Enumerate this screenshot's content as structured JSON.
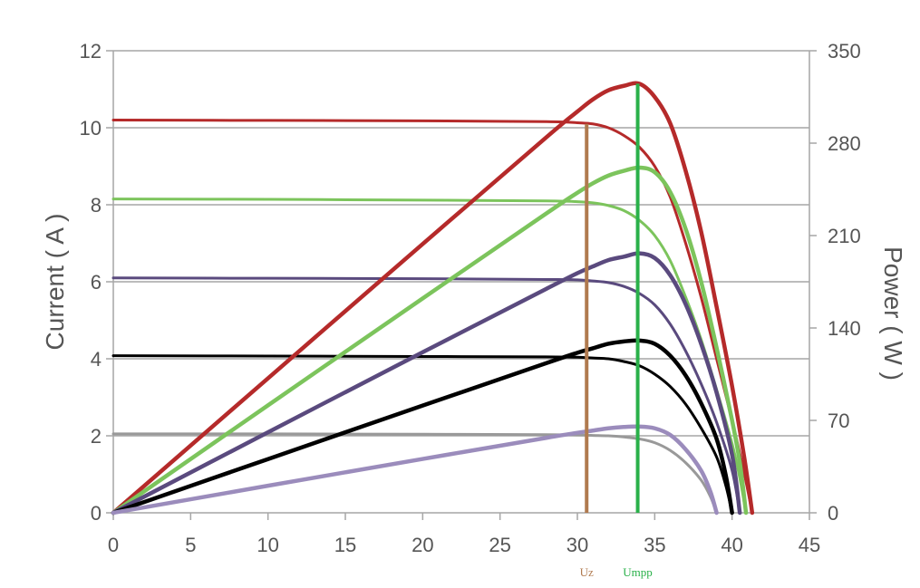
{
  "chart_data": {
    "type": "line",
    "title": "",
    "xlabel": "",
    "ylabel_left": "Current ( A )",
    "ylabel_right": "Power ( W )",
    "xlim": [
      0,
      45
    ],
    "ylim_left": [
      0,
      12
    ],
    "ylim_right": [
      0,
      350
    ],
    "x_ticks": [
      "0",
      "5",
      "10",
      "15",
      "20",
      "25",
      "30",
      "35",
      "40",
      "45"
    ],
    "y_left_ticks": [
      "0",
      "2",
      "4",
      "6",
      "8",
      "10",
      "12"
    ],
    "y_right_ticks": [
      "0",
      "70",
      "140",
      "210",
      "280",
      "350"
    ],
    "grid": "horizontal",
    "iv_series": [
      {
        "color": "#b52a2a",
        "isc": 10.2,
        "voc": 41.3,
        "points": [
          [
            0,
            10.2
          ],
          [
            10,
            10.19
          ],
          [
            20,
            10.18
          ],
          [
            28,
            10.16
          ],
          [
            30,
            10.13
          ],
          [
            31,
            10.1
          ],
          [
            32,
            10.0
          ],
          [
            33,
            9.8
          ],
          [
            34,
            9.5
          ],
          [
            35,
            9.0
          ],
          [
            36,
            8.2
          ],
          [
            37,
            7.0
          ],
          [
            38,
            5.6
          ],
          [
            39,
            4.0
          ],
          [
            40,
            2.4
          ],
          [
            40.8,
            1.0
          ],
          [
            41.3,
            0
          ]
        ]
      },
      {
        "color": "#7cc45c",
        "isc": 8.15,
        "voc": 40.9,
        "points": [
          [
            0,
            8.15
          ],
          [
            10,
            8.14
          ],
          [
            20,
            8.12
          ],
          [
            28,
            8.1
          ],
          [
            30,
            8.08
          ],
          [
            31,
            8.05
          ],
          [
            32,
            7.98
          ],
          [
            33,
            7.85
          ],
          [
            34,
            7.6
          ],
          [
            35,
            7.2
          ],
          [
            36,
            6.55
          ],
          [
            37,
            5.6
          ],
          [
            38,
            4.5
          ],
          [
            39,
            3.2
          ],
          [
            40,
            1.8
          ],
          [
            40.5,
            0.9
          ],
          [
            40.9,
            0
          ]
        ]
      },
      {
        "color": "#5a4a7e",
        "isc": 6.1,
        "voc": 40.5,
        "points": [
          [
            0,
            6.1
          ],
          [
            10,
            6.09
          ],
          [
            20,
            6.08
          ],
          [
            28,
            6.06
          ],
          [
            30,
            6.05
          ],
          [
            31,
            6.02
          ],
          [
            32,
            5.98
          ],
          [
            33,
            5.88
          ],
          [
            34,
            5.7
          ],
          [
            35,
            5.4
          ],
          [
            36,
            4.9
          ],
          [
            37,
            4.2
          ],
          [
            38,
            3.35
          ],
          [
            39,
            2.35
          ],
          [
            40,
            1.1
          ],
          [
            40.5,
            0
          ]
        ]
      },
      {
        "color": "#000000",
        "isc": 4.08,
        "voc": 40.0,
        "points": [
          [
            0,
            4.08
          ],
          [
            10,
            4.07
          ],
          [
            20,
            4.06
          ],
          [
            28,
            4.05
          ],
          [
            30,
            4.04
          ],
          [
            31,
            4.02
          ],
          [
            32,
            4.0
          ],
          [
            33,
            3.93
          ],
          [
            34,
            3.82
          ],
          [
            35,
            3.6
          ],
          [
            36,
            3.28
          ],
          [
            37,
            2.82
          ],
          [
            38,
            2.2
          ],
          [
            39,
            1.45
          ],
          [
            39.6,
            0.7
          ],
          [
            40.0,
            0
          ]
        ]
      },
      {
        "color": "#999999",
        "isc": 2.05,
        "voc": 39.0,
        "points": [
          [
            0,
            2.05
          ],
          [
            10,
            2.05
          ],
          [
            20,
            2.04
          ],
          [
            28,
            2.03
          ],
          [
            30,
            2.02
          ],
          [
            31,
            2.01
          ],
          [
            32,
            2.0
          ],
          [
            33,
            1.97
          ],
          [
            34,
            1.92
          ],
          [
            35,
            1.82
          ],
          [
            36,
            1.62
          ],
          [
            37,
            1.3
          ],
          [
            38,
            0.85
          ],
          [
            38.6,
            0.42
          ],
          [
            39.0,
            0
          ]
        ]
      }
    ],
    "pv_series": [
      {
        "color": "#b52a2a",
        "pmax": 325,
        "points": [
          [
            0,
            0
          ],
          [
            10,
            101.9
          ],
          [
            20,
            203.6
          ],
          [
            28,
            284.5
          ],
          [
            30,
            303.9
          ],
          [
            31,
            313.1
          ],
          [
            32,
            320
          ],
          [
            33,
            323.4
          ],
          [
            34,
            325
          ],
          [
            35,
            315
          ],
          [
            36,
            295
          ],
          [
            37,
            259
          ],
          [
            38,
            213
          ],
          [
            39,
            156
          ],
          [
            40,
            96
          ],
          [
            40.8,
            41
          ],
          [
            41.3,
            0
          ]
        ]
      },
      {
        "color": "#7cc45c",
        "pmax": 262,
        "points": [
          [
            0,
            0
          ],
          [
            10,
            81.4
          ],
          [
            20,
            162.4
          ],
          [
            28,
            226.8
          ],
          [
            30,
            242.4
          ],
          [
            31,
            249.6
          ],
          [
            32,
            255.4
          ],
          [
            33,
            259
          ],
          [
            34,
            261.5
          ],
          [
            35,
            258
          ],
          [
            36,
            243
          ],
          [
            37,
            215
          ],
          [
            38,
            175
          ],
          [
            39,
            125
          ],
          [
            40,
            70
          ],
          [
            40.5,
            38
          ],
          [
            40.9,
            0
          ]
        ]
      },
      {
        "color": "#5a4a7e",
        "pmax": 197,
        "points": [
          [
            0,
            0
          ],
          [
            10,
            61
          ],
          [
            20,
            121.6
          ],
          [
            28,
            169.7
          ],
          [
            30,
            181.5
          ],
          [
            31,
            186.6
          ],
          [
            32,
            191.4
          ],
          [
            33,
            194
          ],
          [
            34,
            196.5
          ],
          [
            35,
            193
          ],
          [
            36,
            180
          ],
          [
            37,
            158
          ],
          [
            38,
            128
          ],
          [
            39,
            91
          ],
          [
            40,
            44
          ],
          [
            40.5,
            0
          ]
        ]
      },
      {
        "color": "#000000",
        "pmax": 131,
        "points": [
          [
            0,
            0
          ],
          [
            10,
            40.7
          ],
          [
            20,
            81.2
          ],
          [
            28,
            113.4
          ],
          [
            30,
            121.2
          ],
          [
            31,
            124.6
          ],
          [
            32,
            128
          ],
          [
            33,
            129.8
          ],
          [
            34,
            130.5
          ],
          [
            35,
            128
          ],
          [
            36,
            119
          ],
          [
            37,
            104
          ],
          [
            38,
            83
          ],
          [
            39,
            56
          ],
          [
            39.6,
            28
          ],
          [
            40.0,
            0
          ]
        ]
      },
      {
        "color": "#9b8cbc",
        "pmax": 65,
        "points": [
          [
            0,
            0
          ],
          [
            10,
            20.5
          ],
          [
            20,
            40.8
          ],
          [
            28,
            56.8
          ],
          [
            30,
            60.6
          ],
          [
            31,
            62.3
          ],
          [
            32,
            64
          ],
          [
            33,
            65
          ],
          [
            34,
            65.3
          ],
          [
            35,
            64
          ],
          [
            36,
            59
          ],
          [
            37,
            48
          ],
          [
            38,
            32
          ],
          [
            38.6,
            16
          ],
          [
            39.0,
            0
          ]
        ]
      }
    ],
    "markers": [
      {
        "label": "Uz",
        "x": 30.6,
        "color": "#b07a4f"
      },
      {
        "label": "Umpp",
        "x": 33.9,
        "color": "#2ab14a"
      }
    ]
  }
}
